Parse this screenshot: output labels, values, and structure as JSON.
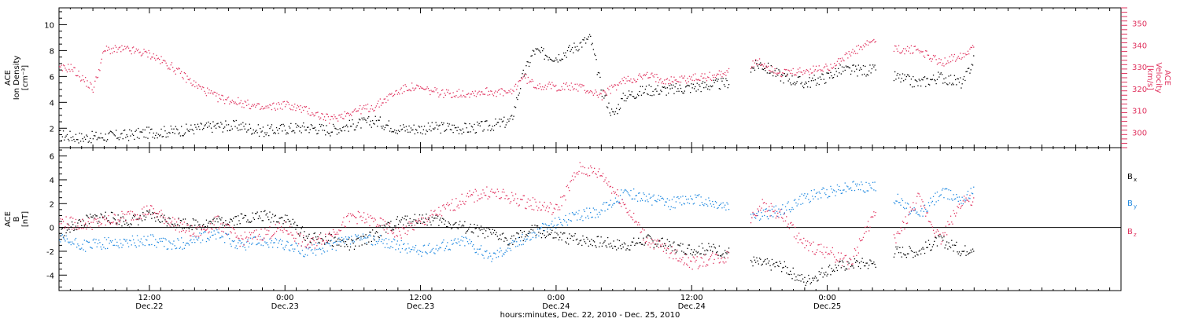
{
  "chart_data": [
    {
      "type": "scatter",
      "panel": "top",
      "ylabel_lines": [
        "ACE",
        "Ion Density",
        "[cm⁻³]"
      ],
      "y_ticks": [
        "2",
        "4",
        "6",
        "8",
        "10"
      ],
      "ylim": [
        0.5,
        11.3
      ],
      "y2label_lines": [
        "ACE",
        "Velocity",
        "[km/s]"
      ],
      "y2_ticks": [
        "300",
        "310",
        "320",
        "330",
        "340",
        "350"
      ],
      "y2lim": [
        293,
        357
      ],
      "series": [
        {
          "name": "Ion Density",
          "color": "#000000",
          "axis": "left",
          "points": [
            [
              0,
              1.5
            ],
            [
              2,
              1.3
            ],
            [
              4,
              1.4
            ],
            [
              6,
              1.5
            ],
            [
              8,
              1.7
            ],
            [
              10,
              1.8
            ],
            [
              12,
              2.0
            ],
            [
              14,
              2.2
            ],
            [
              16,
              2.2
            ],
            [
              18,
              1.8
            ],
            [
              20,
              2.0
            ],
            [
              22,
              2.1
            ],
            [
              24,
              1.9
            ],
            [
              26,
              2.3
            ],
            [
              28,
              2.6
            ],
            [
              30,
              2.0
            ],
            [
              32,
              2.0
            ],
            [
              34,
              2.1
            ],
            [
              36,
              2.0
            ],
            [
              38,
              2.2
            ],
            [
              40,
              2.6
            ],
            [
              41,
              6.0
            ],
            [
              42,
              8.0
            ],
            [
              44,
              7.5
            ],
            [
              46,
              8.5
            ],
            [
              47,
              9.0
            ],
            [
              48,
              5.0
            ],
            [
              49,
              3.0
            ],
            [
              50,
              4.5
            ],
            [
              52,
              5.0
            ],
            [
              54,
              5.0
            ],
            [
              56,
              5.2
            ],
            [
              58,
              5.4
            ],
            [
              59,
              5.5
            ],
            [
              62,
              7.0
            ],
            [
              64,
              6.0
            ],
            [
              66,
              5.5
            ],
            [
              68,
              6.0
            ],
            [
              69,
              6.5
            ],
            [
              72,
              6.5
            ],
            [
              74,
              6.0
            ],
            [
              76,
              5.5
            ],
            [
              78,
              6.0
            ],
            [
              80,
              5.5
            ],
            [
              81,
              7.5
            ]
          ]
        },
        {
          "name": "Velocity",
          "color": "#e0335f",
          "axis": "right",
          "points": [
            [
              0,
              329
            ],
            [
              1,
              330
            ],
            [
              2,
              325
            ],
            [
              3,
              320
            ],
            [
              4,
              338
            ],
            [
              6,
              338
            ],
            [
              8,
              336
            ],
            [
              10,
              330
            ],
            [
              12,
              322
            ],
            [
              14,
              316
            ],
            [
              16,
              314
            ],
            [
              18,
              311
            ],
            [
              20,
              313
            ],
            [
              22,
              310
            ],
            [
              24,
              306
            ],
            [
              26,
              310
            ],
            [
              28,
              312
            ],
            [
              29,
              316
            ],
            [
              30,
              319
            ],
            [
              31,
              321
            ],
            [
              32,
              320
            ],
            [
              34,
              318
            ],
            [
              36,
              318
            ],
            [
              38,
              319
            ],
            [
              40,
              318
            ],
            [
              41,
              326
            ],
            [
              42,
              322
            ],
            [
              44,
              321
            ],
            [
              46,
              321
            ],
            [
              48,
              317
            ],
            [
              50,
              324
            ],
            [
              52,
              326
            ],
            [
              54,
              324
            ],
            [
              56,
              325
            ],
            [
              58,
              326
            ],
            [
              59,
              328
            ],
            [
              62,
              332
            ],
            [
              64,
              327
            ],
            [
              66,
              328
            ],
            [
              68,
              330
            ],
            [
              69,
              333
            ],
            [
              72,
              342
            ],
            [
              74,
              338
            ],
            [
              76,
              338
            ],
            [
              78,
              332
            ],
            [
              80,
              336
            ],
            [
              81,
              340
            ]
          ]
        }
      ]
    },
    {
      "type": "scatter",
      "panel": "bottom",
      "ylabel_lines": [
        "ACE",
        "B",
        "[nT]"
      ],
      "y_ticks": [
        "-4",
        "-2",
        "0",
        "2",
        "4",
        "6"
      ],
      "ylim": [
        -5.3,
        6.7
      ],
      "series": [
        {
          "name": "Bx",
          "legend_main": "B",
          "legend_sub": "x",
          "color": "#000000",
          "points": [
            [
              0,
              -0.5
            ],
            [
              2,
              0.5
            ],
            [
              4,
              1.0
            ],
            [
              6,
              0.5
            ],
            [
              8,
              1.0
            ],
            [
              10,
              0.5
            ],
            [
              12,
              0.3
            ],
            [
              14,
              0.5
            ],
            [
              16,
              0.8
            ],
            [
              18,
              1.0
            ],
            [
              20,
              0.8
            ],
            [
              22,
              -0.8
            ],
            [
              24,
              -1.0
            ],
            [
              26,
              -1.5
            ],
            [
              28,
              -0.5
            ],
            [
              30,
              0.5
            ],
            [
              32,
              0.8
            ],
            [
              34,
              0.5
            ],
            [
              36,
              0.0
            ],
            [
              38,
              -0.5
            ],
            [
              40,
              -1.0
            ],
            [
              42,
              -0.2
            ],
            [
              44,
              -0.8
            ],
            [
              46,
              -1.0
            ],
            [
              48,
              -1.2
            ],
            [
              50,
              -1.5
            ],
            [
              52,
              -1.0
            ],
            [
              54,
              -1.5
            ],
            [
              56,
              -1.8
            ],
            [
              58,
              -1.8
            ],
            [
              59,
              -2.0
            ],
            [
              62,
              -3.0
            ],
            [
              64,
              -3.2
            ],
            [
              66,
              -4.5
            ],
            [
              68,
              -3.5
            ],
            [
              70,
              -3.0
            ],
            [
              72,
              -3.0
            ],
            [
              74,
              -2.0
            ],
            [
              76,
              -2.0
            ],
            [
              78,
              -1.0
            ],
            [
              80,
              -2.0
            ],
            [
              81,
              -1.5
            ]
          ]
        },
        {
          "name": "By",
          "legend_main": "B",
          "legend_sub": "y",
          "color": "#1e88e0",
          "points": [
            [
              0,
              -1.0
            ],
            [
              2,
              -1.5
            ],
            [
              4,
              -1.3
            ],
            [
              6,
              -1.2
            ],
            [
              8,
              -1.0
            ],
            [
              10,
              -1.5
            ],
            [
              12,
              -1.0
            ],
            [
              14,
              -0.5
            ],
            [
              16,
              -1.5
            ],
            [
              18,
              -1.0
            ],
            [
              20,
              -1.5
            ],
            [
              22,
              -2.0
            ],
            [
              24,
              -1.5
            ],
            [
              26,
              -1.0
            ],
            [
              28,
              -1.0
            ],
            [
              30,
              -1.5
            ],
            [
              32,
              -2.0
            ],
            [
              34,
              -1.5
            ],
            [
              36,
              -1.0
            ],
            [
              38,
              -2.5
            ],
            [
              40,
              -1.5
            ],
            [
              42,
              -0.5
            ],
            [
              44,
              0.5
            ],
            [
              46,
              1.0
            ],
            [
              48,
              1.5
            ],
            [
              50,
              3.0
            ],
            [
              52,
              2.5
            ],
            [
              54,
              2.0
            ],
            [
              56,
              2.5
            ],
            [
              58,
              2.0
            ],
            [
              59,
              1.8
            ],
            [
              62,
              1.0
            ],
            [
              64,
              1.5
            ],
            [
              66,
              2.5
            ],
            [
              68,
              3.0
            ],
            [
              70,
              3.5
            ],
            [
              72,
              3.5
            ],
            [
              74,
              2.5
            ],
            [
              76,
              1.0
            ],
            [
              78,
              3.0
            ],
            [
              80,
              2.5
            ],
            [
              81,
              3.0
            ]
          ]
        },
        {
          "name": "Bz",
          "legend_main": "B",
          "legend_sub": "z",
          "color": "#e0335f",
          "points": [
            [
              0,
              0.5
            ],
            [
              2,
              0.3
            ],
            [
              4,
              0.5
            ],
            [
              6,
              1.0
            ],
            [
              8,
              1.5
            ],
            [
              10,
              0.5
            ],
            [
              12,
              -0.5
            ],
            [
              14,
              0.5
            ],
            [
              16,
              -1.0
            ],
            [
              18,
              -0.5
            ],
            [
              20,
              0.0
            ],
            [
              22,
              -1.5
            ],
            [
              24,
              -0.5
            ],
            [
              26,
              1.0
            ],
            [
              28,
              0.5
            ],
            [
              30,
              -0.5
            ],
            [
              32,
              0.5
            ],
            [
              34,
              1.5
            ],
            [
              36,
              2.5
            ],
            [
              38,
              3.0
            ],
            [
              40,
              2.5
            ],
            [
              42,
              2.0
            ],
            [
              44,
              1.5
            ],
            [
              46,
              5.0
            ],
            [
              48,
              4.5
            ],
            [
              50,
              2.0
            ],
            [
              52,
              -1.0
            ],
            [
              54,
              -2.0
            ],
            [
              56,
              -3.0
            ],
            [
              58,
              -2.5
            ],
            [
              59,
              -2.5
            ],
            [
              62,
              2.0
            ],
            [
              64,
              1.0
            ],
            [
              66,
              -1.5
            ],
            [
              68,
              -2.0
            ],
            [
              70,
              -3.0
            ],
            [
              72,
              1.0
            ],
            [
              74,
              -1.0
            ],
            [
              76,
              2.5
            ],
            [
              78,
              -1.0
            ],
            [
              80,
              2.5
            ],
            [
              81,
              2.0
            ]
          ]
        }
      ]
    }
  ],
  "x_axis": {
    "xlim": [
      0,
      94
    ],
    "major_ticks": [
      {
        "x": 8,
        "time": "12:00",
        "date": "Dec.22"
      },
      {
        "x": 20,
        "time": "0:00",
        "date": "Dec.23"
      },
      {
        "x": 32,
        "time": "12:00",
        "date": "Dec.23"
      },
      {
        "x": 44,
        "time": "0:00",
        "date": "Dec.24"
      },
      {
        "x": 56,
        "time": "12:00",
        "date": "Dec.24"
      },
      {
        "x": 68,
        "time": "0:00",
        "date": "Dec.25"
      }
    ],
    "xlabel": "hours:minutes, Dec. 22, 2010 - Dec. 25, 2010"
  }
}
